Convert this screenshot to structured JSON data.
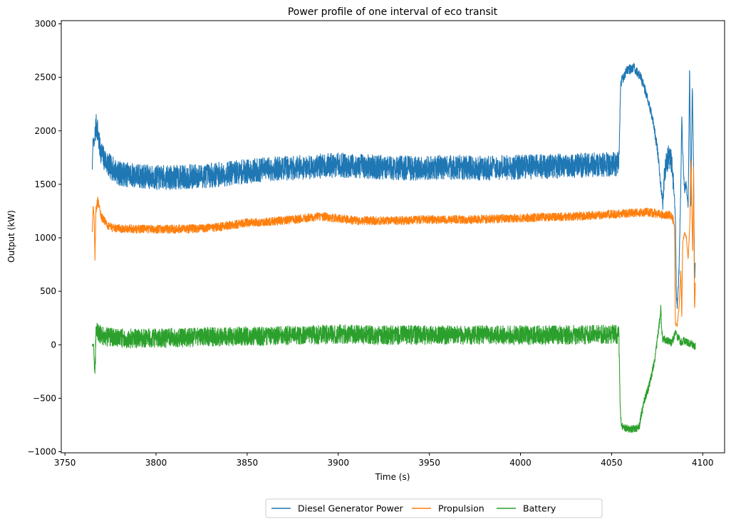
{
  "chart_data": {
    "type": "line",
    "title": "Power profile of one interval of eco transit",
    "xlabel": "Time (s)",
    "ylabel": "Output (kW)",
    "xlim": [
      3748,
      4112
    ],
    "ylim": [
      -1010,
      3030
    ],
    "x_ticks": [
      3750,
      3800,
      3850,
      3900,
      3950,
      4000,
      4050,
      4100
    ],
    "x_tick_labels": [
      "3750",
      "3800",
      "3850",
      "3900",
      "3950",
      "4000",
      "4050",
      "4100"
    ],
    "y_ticks": [
      -1000,
      -500,
      0,
      500,
      1000,
      1500,
      2000,
      2500,
      3000
    ],
    "y_tick_labels": [
      "−1000",
      "−500",
      "0",
      "500",
      "1000",
      "1500",
      "2000",
      "2500",
      "3000"
    ],
    "grid": false,
    "legend_position": "bottom-center, below axes",
    "series": [
      {
        "name": "Diesel Generator Power",
        "color": "#1f77b4",
        "noise": 230,
        "points": [
          [
            3765,
            1650
          ],
          [
            3765.5,
            1950
          ],
          [
            3766,
            1850
          ],
          [
            3767,
            2050
          ],
          [
            3768,
            2000
          ],
          [
            3769,
            1850
          ],
          [
            3771,
            1750
          ],
          [
            3775,
            1660
          ],
          [
            3780,
            1600
          ],
          [
            3790,
            1580
          ],
          [
            3800,
            1560
          ],
          [
            3820,
            1570
          ],
          [
            3840,
            1600
          ],
          [
            3860,
            1640
          ],
          [
            3880,
            1660
          ],
          [
            3900,
            1680
          ],
          [
            3920,
            1660
          ],
          [
            3940,
            1650
          ],
          [
            3960,
            1660
          ],
          [
            3980,
            1650
          ],
          [
            4000,
            1660
          ],
          [
            4020,
            1670
          ],
          [
            4040,
            1680
          ],
          [
            4054,
            1690
          ],
          [
            4055,
            2450
          ],
          [
            4058,
            2550
          ],
          [
            4062,
            2600
          ],
          [
            4066,
            2500
          ],
          [
            4069,
            2350
          ],
          [
            4072,
            2150
          ],
          [
            4075,
            1850
          ],
          [
            4077,
            1500
          ],
          [
            4078,
            1350
          ],
          [
            4079,
            1600
          ],
          [
            4081,
            1750
          ],
          [
            4083,
            1700
          ],
          [
            4084,
            1500
          ],
          [
            4085,
            1200
          ],
          [
            4085.5,
            500
          ],
          [
            4086,
            330
          ],
          [
            4087,
            700
          ],
          [
            4088,
            1500
          ],
          [
            4088.5,
            2150
          ],
          [
            4089,
            1800
          ],
          [
            4090,
            1450
          ],
          [
            4091,
            1500
          ],
          [
            4092,
            1250
          ],
          [
            4092.8,
            2600
          ],
          [
            4093.5,
            1300
          ],
          [
            4094.3,
            2450
          ],
          [
            4095,
            1600
          ],
          [
            4095.5,
            600
          ],
          [
            4096,
            800
          ]
        ]
      },
      {
        "name": "Propulsion",
        "color": "#ff7f0e",
        "noise": 80,
        "points": [
          [
            3765,
            1050
          ],
          [
            3765.5,
            1300
          ],
          [
            3766,
            1200
          ],
          [
            3766.5,
            800
          ],
          [
            3767,
            1250
          ],
          [
            3768,
            1350
          ],
          [
            3770,
            1200
          ],
          [
            3773,
            1120
          ],
          [
            3776,
            1090
          ],
          [
            3790,
            1080
          ],
          [
            3810,
            1080
          ],
          [
            3830,
            1090
          ],
          [
            3850,
            1140
          ],
          [
            3870,
            1160
          ],
          [
            3890,
            1200
          ],
          [
            3910,
            1160
          ],
          [
            3930,
            1160
          ],
          [
            3950,
            1170
          ],
          [
            3970,
            1170
          ],
          [
            3990,
            1180
          ],
          [
            4010,
            1190
          ],
          [
            4030,
            1200
          ],
          [
            4050,
            1220
          ],
          [
            4060,
            1230
          ],
          [
            4070,
            1240
          ],
          [
            4080,
            1210
          ],
          [
            4083,
            1210
          ],
          [
            4084,
            1150
          ],
          [
            4084.5,
            1100
          ],
          [
            4085,
            200
          ],
          [
            4086,
            180
          ],
          [
            4087,
            350
          ],
          [
            4088,
            700
          ],
          [
            4088.5,
            250
          ],
          [
            4089,
            950
          ],
          [
            4090,
            1050
          ],
          [
            4091,
            1000
          ],
          [
            4092,
            800
          ],
          [
            4093,
            1150
          ],
          [
            4093.5,
            1750
          ],
          [
            4094,
            1300
          ],
          [
            4094.5,
            850
          ],
          [
            4095,
            1650
          ],
          [
            4095.5,
            300
          ],
          [
            4096,
            600
          ]
        ]
      },
      {
        "name": "Battery",
        "color": "#2ca02c",
        "noise": 180,
        "points": [
          [
            3765,
            0
          ],
          [
            3765.8,
            0
          ],
          [
            3766,
            -150
          ],
          [
            3766.5,
            -300
          ],
          [
            3767,
            100
          ],
          [
            3768,
            120
          ],
          [
            3770,
            80
          ],
          [
            3780,
            60
          ],
          [
            3800,
            60
          ],
          [
            3820,
            70
          ],
          [
            3840,
            80
          ],
          [
            3860,
            80
          ],
          [
            3880,
            90
          ],
          [
            3900,
            100
          ],
          [
            3920,
            90
          ],
          [
            3940,
            90
          ],
          [
            3960,
            90
          ],
          [
            3980,
            90
          ],
          [
            4000,
            90
          ],
          [
            4020,
            90
          ],
          [
            4040,
            95
          ],
          [
            4054,
            100
          ],
          [
            4054.6,
            -500
          ],
          [
            4055,
            -700
          ],
          [
            4056,
            -760
          ],
          [
            4058,
            -780
          ],
          [
            4062,
            -790
          ],
          [
            4065,
            -780
          ],
          [
            4066,
            -680
          ],
          [
            4068,
            -520
          ],
          [
            4070,
            -420
          ],
          [
            4072,
            -280
          ],
          [
            4074,
            -100
          ],
          [
            4075.5,
            100
          ],
          [
            4076.5,
            250
          ],
          [
            4077,
            350
          ],
          [
            4077.5,
            150
          ],
          [
            4078,
            60
          ],
          [
            4080,
            40
          ],
          [
            4083,
            20
          ],
          [
            4085,
            100
          ],
          [
            4087,
            60
          ],
          [
            4088,
            20
          ],
          [
            4090,
            40
          ],
          [
            4092,
            20
          ],
          [
            4094,
            10
          ],
          [
            4095,
            -10
          ],
          [
            4096,
            -10
          ]
        ]
      }
    ]
  }
}
